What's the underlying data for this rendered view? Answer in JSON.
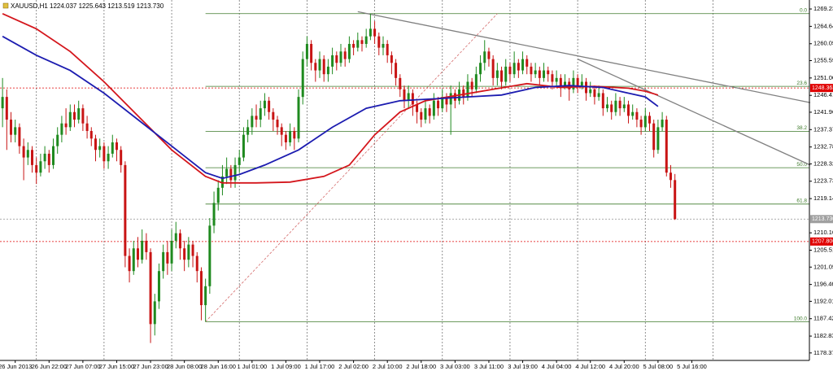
{
  "chart_data": {
    "type": "candlestick",
    "title": "XAUUSD,H1  1224.037 1225.643 1213.519 1213.730",
    "up_color": "#1f8a1f",
    "down_color": "#c81414",
    "open": [
      1243,
      1246,
      1240,
      1236,
      1238,
      1233,
      1230,
      1232,
      1228,
      1226,
      1229,
      1231,
      1228,
      1233,
      1236,
      1239,
      1238,
      1242,
      1240,
      1243,
      1239,
      1237,
      1235,
      1232,
      1233,
      1229,
      1231,
      1234,
      1232,
      1228,
      1204,
      1200,
      1206,
      1203,
      1208,
      1205,
      1186,
      1192,
      1200,
      1205,
      1202,
      1208,
      1210,
      1206,
      1203,
      1207,
      1204,
      1200,
      1191,
      1196,
      1212,
      1218,
      1222,
      1225,
      1227,
      1224,
      1228,
      1230,
      1236,
      1238,
      1241,
      1240,
      1243,
      1245,
      1242,
      1240,
      1238,
      1236,
      1234,
      1237,
      1235,
      1246,
      1256,
      1260,
      1255,
      1253,
      1256,
      1252,
      1254,
      1257,
      1255,
      1258,
      1256,
      1260,
      1259,
      1261,
      1260,
      1262,
      1264,
      1262,
      1259,
      1260,
      1257,
      1255,
      1251,
      1248,
      1245,
      1247,
      1244,
      1242,
      1240,
      1243,
      1241,
      1245,
      1243,
      1246,
      1244,
      1247,
      1245,
      1248,
      1246,
      1250,
      1248,
      1252,
      1255,
      1258,
      1256,
      1251,
      1253,
      1250,
      1254,
      1252,
      1255,
      1253,
      1256,
      1254,
      1252,
      1253,
      1251,
      1253,
      1252,
      1250,
      1251,
      1249,
      1250,
      1248,
      1251,
      1249,
      1250,
      1247,
      1248,
      1246,
      1247,
      1243,
      1244,
      1242,
      1245,
      1243,
      1244,
      1241,
      1242,
      1240,
      1238,
      1241,
      1239,
      1232,
      1238,
      1240,
      1226,
      1224.037
    ],
    "high": [
      1251,
      1248,
      1242,
      1240,
      1239,
      1235,
      1234,
      1233,
      1230,
      1231,
      1233,
      1232,
      1235,
      1238,
      1241,
      1243,
      1244,
      1244,
      1245,
      1244,
      1241,
      1238,
      1236,
      1235,
      1234,
      1233,
      1236,
      1235,
      1233,
      1229,
      1206,
      1208,
      1209,
      1211,
      1210,
      1206,
      1194,
      1202,
      1207,
      1208,
      1211,
      1213,
      1211,
      1208,
      1209,
      1208,
      1205,
      1201,
      1198,
      1214,
      1221,
      1224,
      1228,
      1230,
      1228,
      1230,
      1232,
      1238,
      1240,
      1243,
      1244,
      1245,
      1247,
      1246,
      1243,
      1241,
      1239,
      1237,
      1239,
      1238,
      1248,
      1258,
      1262,
      1261,
      1256,
      1258,
      1257,
      1256,
      1259,
      1258,
      1260,
      1259,
      1262,
      1261,
      1263,
      1262,
      1264,
      1268,
      1266,
      1263,
      1262,
      1261,
      1258,
      1256,
      1252,
      1249,
      1249,
      1248,
      1245,
      1243,
      1245,
      1244,
      1247,
      1246,
      1248,
      1247,
      1249,
      1248,
      1250,
      1249,
      1252,
      1251,
      1254,
      1257,
      1261,
      1259,
      1257,
      1255,
      1254,
      1256,
      1255,
      1258,
      1256,
      1258,
      1257,
      1255,
      1255,
      1254,
      1255,
      1254,
      1253,
      1253,
      1252,
      1252,
      1251,
      1253,
      1252,
      1252,
      1251,
      1250,
      1249,
      1249,
      1248,
      1246,
      1245,
      1247,
      1246,
      1246,
      1245,
      1244,
      1243,
      1241,
      1243,
      1242,
      1240,
      1240,
      1242,
      1241,
      1228,
      1225.643
    ],
    "low": [
      1238,
      1232,
      1234,
      1234,
      1231,
      1224,
      1228,
      1226,
      1223,
      1225,
      1227,
      1226,
      1227,
      1231,
      1234,
      1236,
      1237,
      1238,
      1239,
      1237,
      1235,
      1233,
      1229,
      1230,
      1227,
      1227,
      1230,
      1229,
      1226,
      1201,
      1197,
      1199,
      1201,
      1202,
      1203,
      1181,
      1183,
      1190,
      1198,
      1199,
      1200,
      1206,
      1203,
      1200,
      1201,
      1201,
      1197,
      1187,
      1186.6,
      1194,
      1210,
      1216,
      1220,
      1223,
      1222,
      1222,
      1226,
      1229,
      1234,
      1236,
      1238,
      1238,
      1241,
      1240,
      1237,
      1236,
      1233,
      1232,
      1233,
      1232,
      1234,
      1244,
      1254,
      1253,
      1250,
      1251,
      1250,
      1250,
      1252,
      1253,
      1254,
      1254,
      1255,
      1257,
      1258,
      1258,
      1259,
      1261,
      1260,
      1257,
      1257,
      1255,
      1252,
      1249,
      1246,
      1243,
      1243,
      1241,
      1239,
      1238,
      1239,
      1239,
      1240,
      1241,
      1242,
      1242,
      1236,
      1243,
      1244,
      1244,
      1245,
      1246,
      1247,
      1250,
      1253,
      1254,
      1249,
      1249,
      1248,
      1249,
      1250,
      1251,
      1251,
      1252,
      1252,
      1250,
      1251,
      1249,
      1250,
      1250,
      1248,
      1249,
      1246,
      1248,
      1245,
      1247,
      1247,
      1248,
      1245,
      1246,
      1244,
      1245,
      1241,
      1242,
      1240,
      1241,
      1241,
      1242,
      1239,
      1240,
      1238,
      1236,
      1237,
      1237,
      1230,
      1231,
      1237,
      1225,
      1222,
      1213.519
    ],
    "close": [
      1246,
      1240,
      1236,
      1238,
      1233,
      1230,
      1232,
      1228,
      1226,
      1229,
      1231,
      1228,
      1233,
      1236,
      1239,
      1238,
      1242,
      1240,
      1243,
      1239,
      1237,
      1235,
      1232,
      1233,
      1229,
      1231,
      1234,
      1232,
      1228,
      1204,
      1200,
      1206,
      1203,
      1208,
      1205,
      1186,
      1192,
      1200,
      1205,
      1202,
      1208,
      1210,
      1206,
      1203,
      1207,
      1204,
      1200,
      1191,
      1196,
      1212,
      1218,
      1222,
      1225,
      1227,
      1224,
      1228,
      1230,
      1236,
      1238,
      1241,
      1240,
      1243,
      1245,
      1242,
      1240,
      1238,
      1236,
      1234,
      1237,
      1235,
      1246,
      1256,
      1260,
      1255,
      1253,
      1256,
      1252,
      1254,
      1257,
      1255,
      1258,
      1256,
      1260,
      1259,
      1261,
      1260,
      1262,
      1264,
      1262,
      1259,
      1260,
      1257,
      1255,
      1251,
      1248,
      1245,
      1247,
      1244,
      1242,
      1240,
      1243,
      1241,
      1245,
      1243,
      1246,
      1244,
      1247,
      1245,
      1248,
      1246,
      1250,
      1248,
      1252,
      1255,
      1258,
      1256,
      1251,
      1253,
      1250,
      1254,
      1252,
      1255,
      1253,
      1256,
      1254,
      1252,
      1253,
      1251,
      1253,
      1252,
      1250,
      1251,
      1249,
      1250,
      1248,
      1251,
      1249,
      1250,
      1247,
      1248,
      1246,
      1247,
      1243,
      1244,
      1242,
      1245,
      1243,
      1244,
      1241,
      1242,
      1240,
      1238,
      1241,
      1239,
      1232,
      1238,
      1240,
      1226,
      1224.037,
      1213.73
    ],
    "series": [
      {
        "color": "#d4161c",
        "x": [
          0,
          8,
          16,
          24,
          32,
          40,
          48,
          52,
          60,
          68,
          76,
          82,
          88,
          94,
          100,
          108,
          116,
          124,
          132,
          140,
          148,
          152,
          155
        ],
        "values": [
          1268,
          1264,
          1258,
          1250,
          1241,
          1232,
          1225,
          1223.3,
          1223.3,
          1223.5,
          1225,
          1228,
          1236,
          1242,
          1245,
          1246.5,
          1248,
          1249.5,
          1248.5,
          1248.8,
          1248.3,
          1247.5,
          1246.5
        ]
      },
      {
        "color": "#1c1cb0",
        "x": [
          0,
          8,
          16,
          24,
          32,
          40,
          48,
          52,
          56,
          62,
          70,
          78,
          86,
          94,
          102,
          110,
          118,
          126,
          134,
          142,
          148,
          152,
          155
        ],
        "values": [
          1262,
          1257,
          1253,
          1247,
          1240,
          1233,
          1226,
          1224.5,
          1225.5,
          1228,
          1232,
          1238,
          1243,
          1245,
          1245.5,
          1246,
          1246.5,
          1248.5,
          1249,
          1248.5,
          1247,
          1246,
          1243.5
        ]
      }
    ],
    "trendlines": [
      {
        "color": "#808080",
        "x": [
          84,
          191
        ],
        "values": [
          1268.5,
          1244.5
        ]
      },
      {
        "color": "#808080",
        "x": [
          136,
          191
        ],
        "values": [
          1256,
          1228
        ]
      }
    ],
    "fib_trend": {
      "color": "#d46a6a",
      "x": [
        48,
        117
      ],
      "values": [
        1186.6,
        1268
      ]
    },
    "fib": {
      "color": "#3d7a2a",
      "start": 48,
      "levels": [
        {
          "value": 1268,
          "label": "0.0"
        },
        {
          "value": 1248.8,
          "label": "23.6"
        },
        {
          "value": 1236.9,
          "label": "38.2"
        },
        {
          "value": 1227.3,
          "label": "50.0"
        },
        {
          "value": 1217.7,
          "label": "61.8"
        },
        {
          "value": 1186.6,
          "label": "100.0"
        }
      ]
    },
    "price_lines": [
      {
        "value": 1248.363,
        "label": "1248.363",
        "color": "#e00000"
      },
      {
        "value": 1207.806,
        "label": "1207.806",
        "color": "#e00000"
      },
      {
        "value": 1213.73,
        "label": "1213.730",
        "color": "#a0a0a0"
      }
    ],
    "xlim": [
      -0.6,
      190.8
    ],
    "ylim": [
      1176.4,
      1271.6
    ],
    "yticks": [
      {
        "value": 1269.23,
        "label": "1269.230"
      },
      {
        "value": 1264.64,
        "label": "1264.640"
      },
      {
        "value": 1260.05,
        "label": "1260.050"
      },
      {
        "value": 1255.595,
        "label": "1255.595"
      },
      {
        "value": 1251.005,
        "label": "1251.005"
      },
      {
        "value": 1246.415,
        "label": "1246.415"
      },
      {
        "value": 1241.96,
        "label": "1241.960"
      },
      {
        "value": 1237.37,
        "label": "1237.370"
      },
      {
        "value": 1232.78,
        "label": "1232.780"
      },
      {
        "value": 1228.325,
        "label": "1228.325"
      },
      {
        "value": 1223.735,
        "label": "1223.735"
      },
      {
        "value": 1219.145,
        "label": "1219.145"
      },
      {
        "value": 1210.1,
        "label": "1210.100"
      },
      {
        "value": 1205.51,
        "label": "1205.510"
      },
      {
        "value": 1201.055,
        "label": "1201.055"
      },
      {
        "value": 1196.465,
        "label": "1196.465"
      },
      {
        "value": 1192.01,
        "label": "1192.010"
      },
      {
        "value": 1187.42,
        "label": "1187.420"
      },
      {
        "value": 1182.83,
        "label": "1182.830"
      },
      {
        "value": 1178.375,
        "label": "1178.375"
      }
    ],
    "xticks": [
      {
        "value": 3,
        "label": "26 Jun 2013"
      },
      {
        "value": 11,
        "label": "26 Jun 22:00"
      },
      {
        "value": 19,
        "label": "27 Jun 07:00"
      },
      {
        "value": 27,
        "label": "27 Jun 15:00"
      },
      {
        "value": 35,
        "label": "27 Jun 23:00"
      },
      {
        "value": 43,
        "label": "28 Jun 08:00"
      },
      {
        "value": 51,
        "label": "28 Jun 16:00"
      },
      {
        "value": 59,
        "label": "1 Jul 01:00"
      },
      {
        "value": 67,
        "label": "1 Jul 09:00"
      },
      {
        "value": 75,
        "label": "1 Jul 17:00"
      },
      {
        "value": 83,
        "label": "2 Jul 02:00"
      },
      {
        "value": 91,
        "label": "2 Jul 10:00"
      },
      {
        "value": 99,
        "label": "2 Jul 18:00"
      },
      {
        "value": 107,
        "label": "3 Jul 03:00"
      },
      {
        "value": 115,
        "label": "3 Jul 11:00"
      },
      {
        "value": 123,
        "label": "3 Jul 19:00"
      },
      {
        "value": 131,
        "label": "4 Jul 04:00"
      },
      {
        "value": 139,
        "label": "4 Jul 12:00"
      },
      {
        "value": 147,
        "label": "4 Jul 20:00"
      },
      {
        "value": 155,
        "label": "5 Jul 08:00"
      },
      {
        "value": 163,
        "label": "5 Jul 16:00"
      }
    ],
    "xgrid": [
      8,
      24,
      40,
      56,
      72,
      88,
      104,
      120,
      136,
      152,
      168
    ]
  }
}
